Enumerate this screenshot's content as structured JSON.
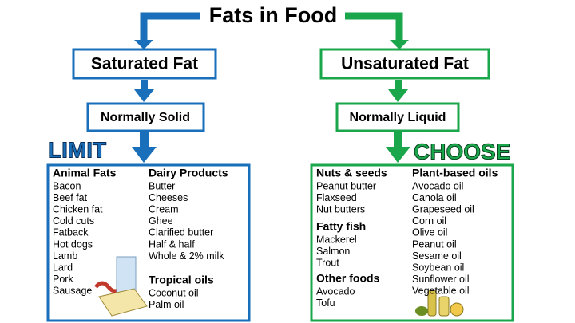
{
  "title": "Fats in Food",
  "left": {
    "heading": "Saturated Fat",
    "state": "Normally Solid",
    "action": "LIMIT",
    "groups": [
      {
        "name": "Animal Fats",
        "items": [
          "Bacon",
          "Beef fat",
          "Chicken fat",
          "Cold cuts",
          "Fatback",
          "Hot dogs",
          "Lamb",
          "Lard",
          "Pork",
          "Sausage"
        ]
      },
      {
        "name": "Dairy Products",
        "items": [
          "Butter",
          "Cheeses",
          "Cream",
          "Ghee",
          "Clarified butter",
          "Half & half",
          "Whole & 2% milk"
        ]
      },
      {
        "name": "Tropical oils",
        "items": [
          "Coconut oil",
          "Palm oil"
        ]
      }
    ]
  },
  "right": {
    "heading": "Unsaturated Fat",
    "state": "Normally Liquid",
    "action": "CHOOSE",
    "groups": [
      {
        "name": "Nuts & seeds",
        "items": [
          "Peanut butter",
          "Flaxseed",
          "Nut butters"
        ]
      },
      {
        "name": "Fatty fish",
        "items": [
          "Mackerel",
          "Salmon",
          "Trout"
        ]
      },
      {
        "name": "Other foods",
        "items": [
          "Avocado",
          "Tofu"
        ]
      },
      {
        "name": "Plant-based oils",
        "items": [
          "Avocado oil",
          "Canola oil",
          "Grapeseed oil",
          "Corn oil",
          "Olive oil",
          "Peanut oil",
          "Sesame oil",
          "Soybean oil",
          "Sunflower oil",
          "Vegetable oil"
        ]
      }
    ]
  }
}
